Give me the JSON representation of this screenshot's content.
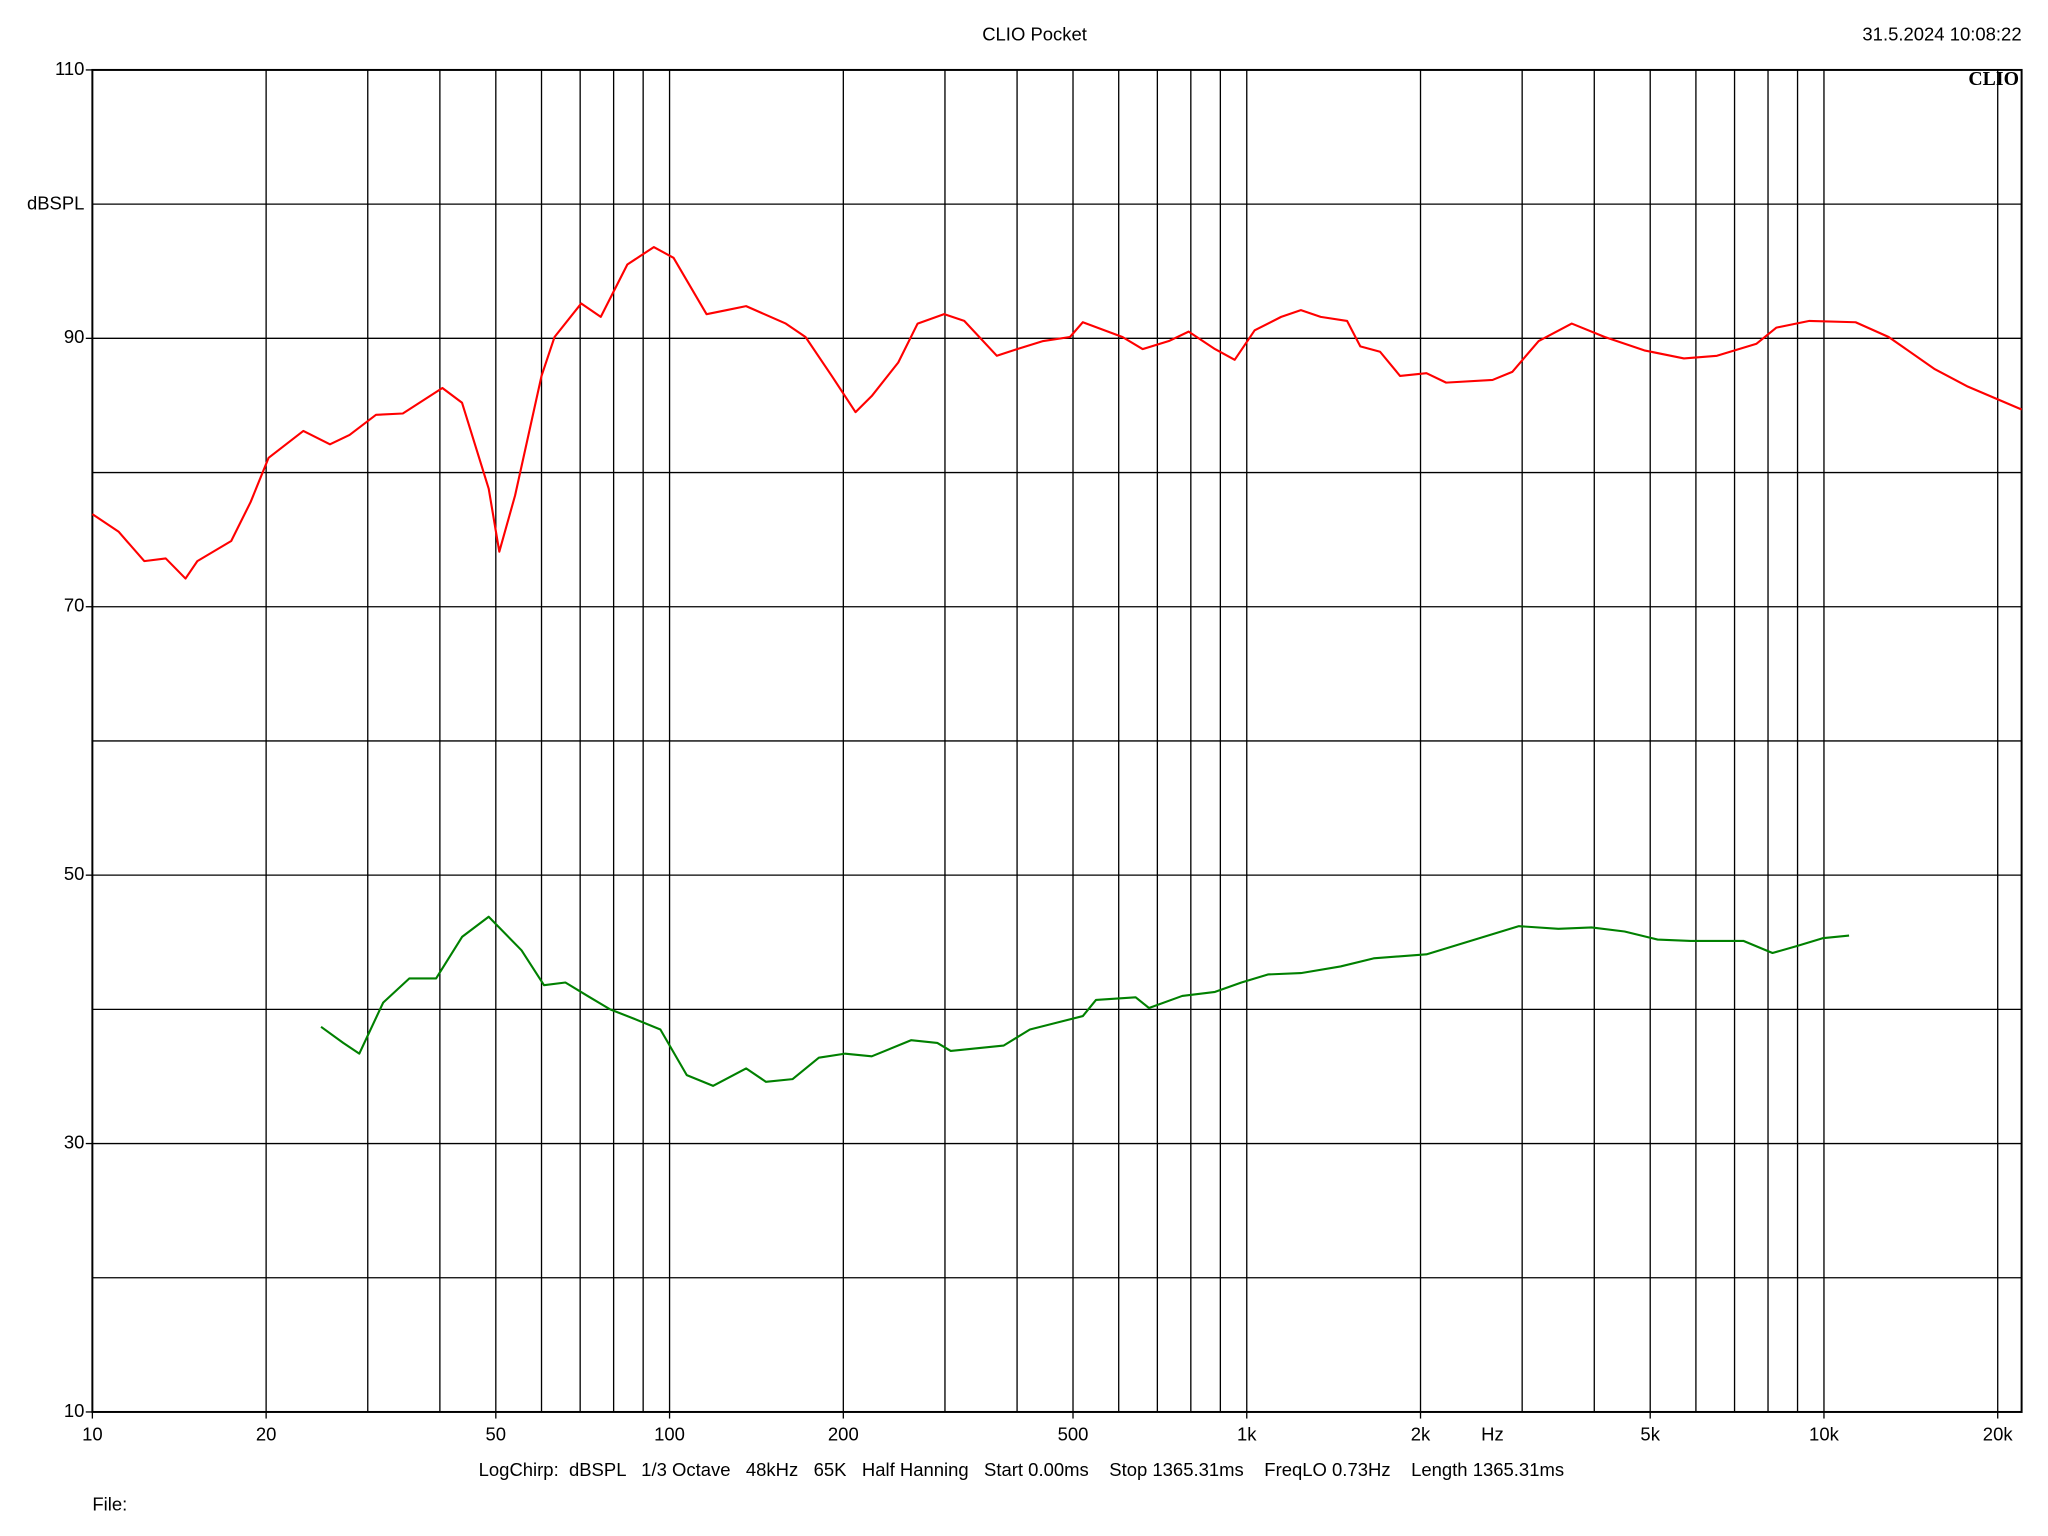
{
  "chart_data": {
    "type": "line",
    "title": "CLIO Pocket",
    "timestamp": "31.5.2024 10:08:22",
    "logo": "CLIO",
    "y_label": "dBSPL",
    "x_label": "Hz",
    "info": "LogChirp:  dBSPL   1/3 Octave   48kHz   65K   Half Hanning   Start 0.00ms    Stop 1365.31ms    FreqLO 0.73Hz    Length 1365.31ms",
    "file_label": "File:",
    "xscale": "log",
    "grid": true,
    "xlim": [
      10,
      22000
    ],
    "ylim": [
      10,
      110
    ],
    "xticks": [
      10,
      20,
      50,
      100,
      200,
      500,
      {
        "value": 1000,
        "label": "1k"
      },
      {
        "value": 2000,
        "label": "2k"
      },
      {
        "value": 5000,
        "label": "5k"
      },
      {
        "value": 10000,
        "label": "10k"
      },
      {
        "value": 20000,
        "label": "20k"
      }
    ],
    "yticks": [
      10,
      30,
      50,
      70,
      90,
      110
    ],
    "xgrid": [
      20,
      30,
      40,
      50,
      60,
      70,
      80,
      90,
      100,
      200,
      300,
      400,
      500,
      600,
      700,
      800,
      900,
      1000,
      2000,
      3000,
      4000,
      5000,
      6000,
      7000,
      8000,
      9000,
      10000,
      20000
    ],
    "ygrid": [
      20,
      30,
      40,
      50,
      60,
      70,
      80,
      90,
      100
    ],
    "series": [
      {
        "color": "#ff0000",
        "x": [
          10,
          11.1,
          12.3,
          13.4,
          14.5,
          15.2,
          17.4,
          18.8,
          20.2,
          23.2,
          25.8,
          27.9,
          31,
          34.5,
          40.4,
          43.7,
          48.6,
          50.7,
          54,
          60,
          63.2,
          70.3,
          76,
          84.5,
          93.9,
          101.6,
          115.9,
          125.4,
          135.7,
          159,
          172,
          191,
          210,
          224,
          249,
          269,
          299,
          324,
          369,
          400,
          444,
          494,
          520,
          609,
          660,
          733,
          793,
          881,
          953,
          1032,
          1147,
          1241,
          1343,
          1492,
          1573,
          1702,
          1843,
          2048,
          2215,
          2666,
          2884,
          3204,
          3656,
          4171,
          4885,
          5720,
          6525,
          7642,
          8273,
          9437,
          11346,
          12944,
          15565,
          17758,
          22000
        ],
        "values": [
          76.9,
          75.6,
          73.4,
          73.6,
          72.1,
          73.4,
          74.9,
          77.8,
          81.1,
          83.1,
          82.1,
          82.8,
          84.3,
          84.4,
          86.3,
          85.2,
          78.8,
          74.1,
          78.3,
          87.2,
          90.1,
          92.6,
          91.6,
          95.5,
          96.8,
          96.0,
          91.8,
          92.1,
          92.4,
          91.1,
          90.1,
          87.2,
          84.5,
          85.7,
          88.2,
          91.1,
          91.8,
          91.3,
          88.7,
          89.2,
          89.8,
          90.1,
          91.2,
          90.1,
          89.2,
          89.8,
          90.5,
          89.2,
          88.4,
          90.6,
          91.6,
          92.1,
          91.6,
          91.3,
          89.4,
          89.0,
          87.2,
          87.4,
          86.7,
          86.9,
          87.5,
          89.8,
          91.1,
          90.1,
          89.1,
          88.5,
          88.7,
          89.6,
          90.8,
          91.3,
          91.2,
          90.1,
          87.7,
          86.4,
          84.7
        ]
      },
      {
        "color": "#008000",
        "x": [
          24.9,
          27.2,
          29,
          31.9,
          35.4,
          39.4,
          43.7,
          48.6,
          55.4,
          60.6,
          66,
          72.1,
          78.9,
          86.8,
          96.4,
          107.1,
          119,
          135.7,
          146.9,
          163.3,
          181.4,
          201.5,
          224,
          262,
          291,
          307,
          379,
          421,
          468,
          520,
          548,
          642,
          677,
          773,
          881,
          979,
          1088,
          1241,
          1454,
          1659,
          2048,
          2399,
          2961,
          3467,
          3957,
          4514,
          5149,
          5874,
          7251,
          8144,
          8951,
          9947,
          11054
        ],
        "values": [
          38.7,
          37.5,
          36.7,
          40.5,
          42.3,
          42.3,
          45.4,
          46.9,
          44.4,
          41.8,
          42.0,
          41.0,
          40.0,
          39.3,
          38.5,
          35.1,
          34.3,
          35.6,
          34.6,
          34.8,
          36.4,
          36.7,
          36.5,
          37.7,
          37.5,
          36.9,
          37.3,
          38.5,
          39.0,
          39.5,
          40.7,
          40.9,
          40.1,
          41.0,
          41.3,
          42.0,
          42.6,
          42.7,
          43.2,
          43.8,
          44.1,
          45.0,
          46.2,
          46.0,
          46.1,
          45.8,
          45.2,
          45.1,
          45.1,
          44.2,
          44.7,
          45.3,
          45.5
        ]
      }
    ]
  }
}
